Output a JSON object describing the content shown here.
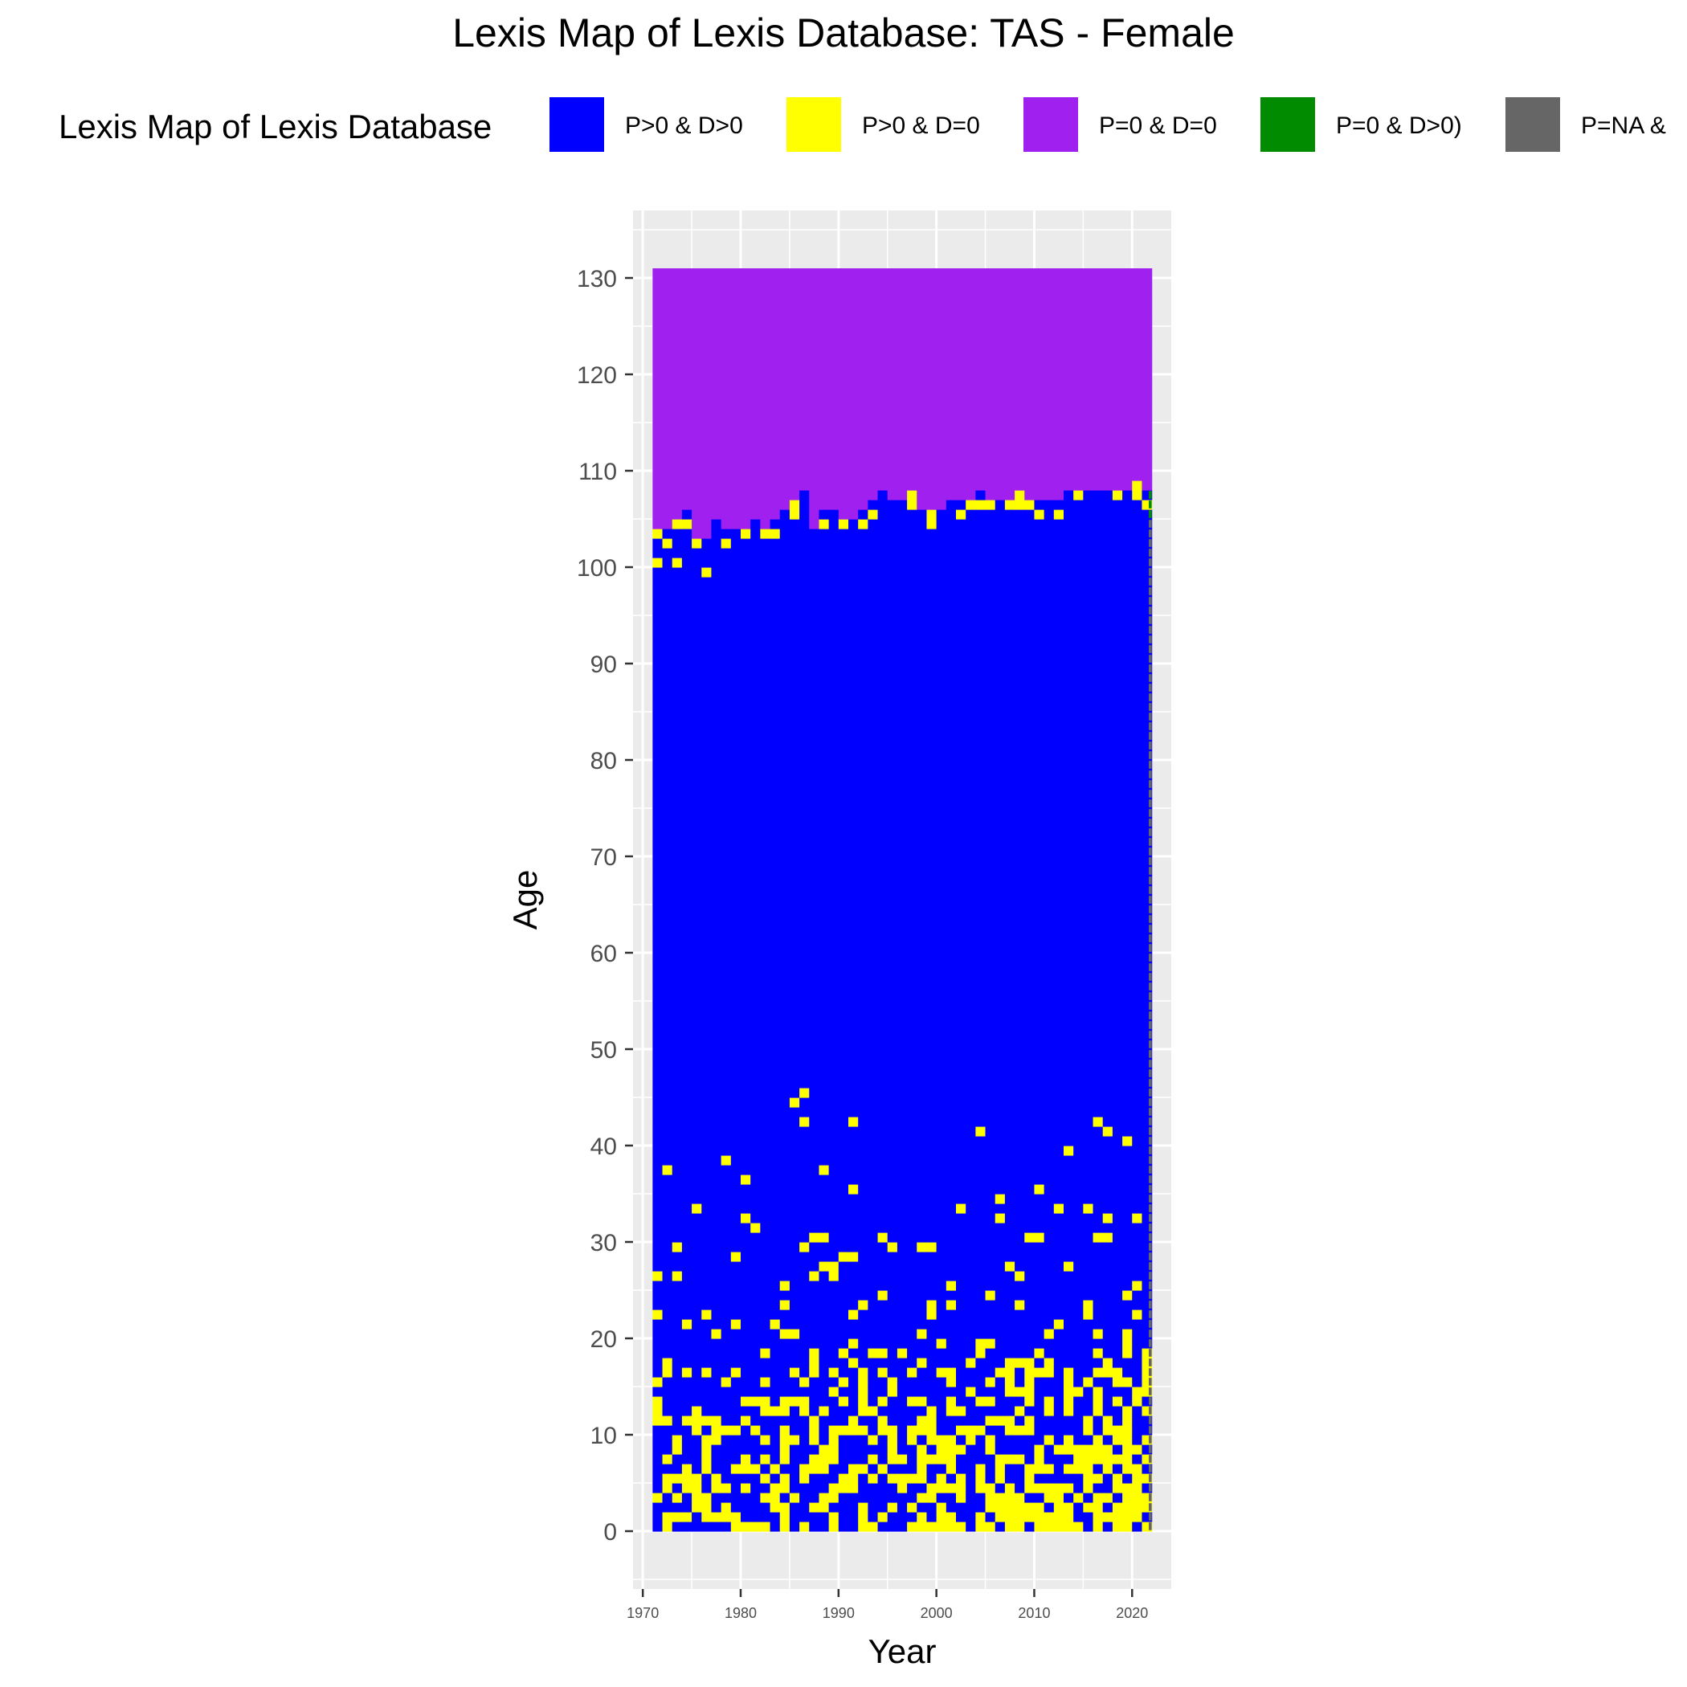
{
  "colors": {
    "p_pos_d_pos": "#0000FF",
    "p_pos_d_zero": "#FFFF00",
    "p_zero_d_zero": "#A020F0",
    "p_zero_d_pos": "#008B00",
    "p_na": "#666666",
    "panel_bg": "#EBEBEB",
    "grid": "#FFFFFF"
  },
  "chart_data": {
    "type": "heatmap",
    "title": "Lexis Map of Lexis Database: TAS - Female",
    "xlabel": "Year",
    "ylabel": "Age",
    "xlim": [
      1969,
      2024
    ],
    "ylim": [
      -6,
      137
    ],
    "x_ticks": [
      "1970",
      "1980",
      "1990",
      "2000",
      "2010",
      "2020"
    ],
    "y_ticks": [
      "0",
      "10",
      "20",
      "30",
      "40",
      "50",
      "60",
      "70",
      "80",
      "90",
      "100",
      "110",
      "120",
      "130"
    ],
    "legend": {
      "title": "Lexis Map of Lexis Database",
      "placement": "top",
      "items": [
        {
          "label": "P>0 & D>0",
          "color": "#0000FF"
        },
        {
          "label": "P>0 & D=0",
          "color": "#FFFF00"
        },
        {
          "label": "P=0 & D=0",
          "color": "#A020F0"
        },
        {
          "label": "P=0 & D>0)",
          "color": "#008B00"
        },
        {
          "label": "P=NA &",
          "color": "#666666"
        }
      ]
    },
    "year_range": [
      1971,
      2021
    ],
    "age_range": [
      0,
      130
    ],
    "upper_age_boundary": [
      {
        "year": 1971,
        "age": 103
      },
      {
        "year": 1972,
        "age": 103
      },
      {
        "year": 1973,
        "age": 104
      },
      {
        "year": 1974,
        "age": 105
      },
      {
        "year": 1975,
        "age": 102
      },
      {
        "year": 1976,
        "age": 102
      },
      {
        "year": 1977,
        "age": 104
      },
      {
        "year": 1978,
        "age": 103
      },
      {
        "year": 1979,
        "age": 103
      },
      {
        "year": 1980,
        "age": 103
      },
      {
        "year": 1981,
        "age": 104
      },
      {
        "year": 1982,
        "age": 103
      },
      {
        "year": 1983,
        "age": 104
      },
      {
        "year": 1984,
        "age": 105
      },
      {
        "year": 1985,
        "age": 106
      },
      {
        "year": 1986,
        "age": 107
      },
      {
        "year": 1987,
        "age": 103
      },
      {
        "year": 1988,
        "age": 105
      },
      {
        "year": 1989,
        "age": 105
      },
      {
        "year": 1990,
        "age": 104
      },
      {
        "year": 1991,
        "age": 104
      },
      {
        "year": 1992,
        "age": 105
      },
      {
        "year": 1993,
        "age": 106
      },
      {
        "year": 1994,
        "age": 107
      },
      {
        "year": 1995,
        "age": 106
      },
      {
        "year": 1996,
        "age": 106
      },
      {
        "year": 1997,
        "age": 107
      },
      {
        "year": 1998,
        "age": 105
      },
      {
        "year": 1999,
        "age": 105
      },
      {
        "year": 2000,
        "age": 105
      },
      {
        "year": 2001,
        "age": 106
      },
      {
        "year": 2002,
        "age": 106
      },
      {
        "year": 2003,
        "age": 106
      },
      {
        "year": 2004,
        "age": 107
      },
      {
        "year": 2005,
        "age": 106
      },
      {
        "year": 2006,
        "age": 106
      },
      {
        "year": 2007,
        "age": 106
      },
      {
        "year": 2008,
        "age": 107
      },
      {
        "year": 2009,
        "age": 106
      },
      {
        "year": 2010,
        "age": 106
      },
      {
        "year": 2011,
        "age": 106
      },
      {
        "year": 2012,
        "age": 106
      },
      {
        "year": 2013,
        "age": 107
      },
      {
        "year": 2014,
        "age": 107
      },
      {
        "year": 2015,
        "age": 107
      },
      {
        "year": 2016,
        "age": 107
      },
      {
        "year": 2017,
        "age": 107
      },
      {
        "year": 2018,
        "age": 107
      },
      {
        "year": 2019,
        "age": 107
      },
      {
        "year": 2020,
        "age": 108
      },
      {
        "year": 2021,
        "age": 107
      }
    ],
    "sparse_zero_death_threshold_by_year": [
      {
        "year": 1971,
        "age": 14
      },
      {
        "year": 1975,
        "age": 12
      },
      {
        "year": 1980,
        "age": 13
      },
      {
        "year": 1985,
        "age": 16
      },
      {
        "year": 1990,
        "age": 18
      },
      {
        "year": 1995,
        "age": 18
      },
      {
        "year": 2000,
        "age": 17
      },
      {
        "year": 2005,
        "age": 18
      },
      {
        "year": 2010,
        "age": 17
      },
      {
        "year": 2015,
        "age": 18
      },
      {
        "year": 2021,
        "age": 20
      }
    ],
    "scattered_zero_death_cells": [
      {
        "year": 1971,
        "age": 100
      },
      {
        "year": 1973,
        "age": 100
      },
      {
        "year": 1976,
        "age": 99
      },
      {
        "year": 1985,
        "age": 44
      },
      {
        "year": 1986,
        "age": 45
      },
      {
        "year": 1986,
        "age": 42
      },
      {
        "year": 1991,
        "age": 42
      },
      {
        "year": 2004,
        "age": 41
      },
      {
        "year": 2016,
        "age": 42
      },
      {
        "year": 2017,
        "age": 41
      },
      {
        "year": 2019,
        "age": 40
      },
      {
        "year": 2013,
        "age": 39
      },
      {
        "year": 1978,
        "age": 38
      },
      {
        "year": 1972,
        "age": 37
      },
      {
        "year": 1988,
        "age": 37
      }
    ]
  }
}
